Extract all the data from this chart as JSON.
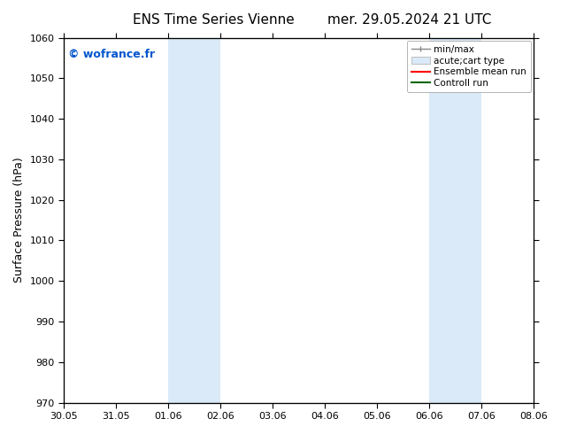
{
  "title_left": "ENS Time Series Vienne",
  "title_right": "mer. 29.05.2024 21 UTC",
  "ylabel": "Surface Pressure (hPa)",
  "ylim": [
    970,
    1060
  ],
  "yticks": [
    970,
    980,
    990,
    1000,
    1010,
    1020,
    1030,
    1040,
    1050,
    1060
  ],
  "xtick_labels": [
    "30.05",
    "31.05",
    "01.06",
    "02.06",
    "03.06",
    "04.06",
    "05.06",
    "06.06",
    "07.06",
    "08.06"
  ],
  "shaded_bands": [
    {
      "xstart": 2.0,
      "xend": 2.5
    },
    {
      "xstart": 2.5,
      "xend": 3.0
    },
    {
      "xstart": 7.0,
      "xend": 7.5
    },
    {
      "xstart": 7.5,
      "xend": 8.0
    }
  ],
  "shaded_color": "#daeaf8",
  "watermark": "© wofrance.fr",
  "watermark_color": "#0055cc",
  "legend_entries": [
    {
      "label": "min/max"
    },
    {
      "label": "acute;cart type"
    },
    {
      "label": "Ensemble mean run"
    },
    {
      "label": "Controll run"
    }
  ],
  "bg_color": "#ffffff",
  "title_fontsize": 11,
  "label_fontsize": 9,
  "tick_fontsize": 8
}
